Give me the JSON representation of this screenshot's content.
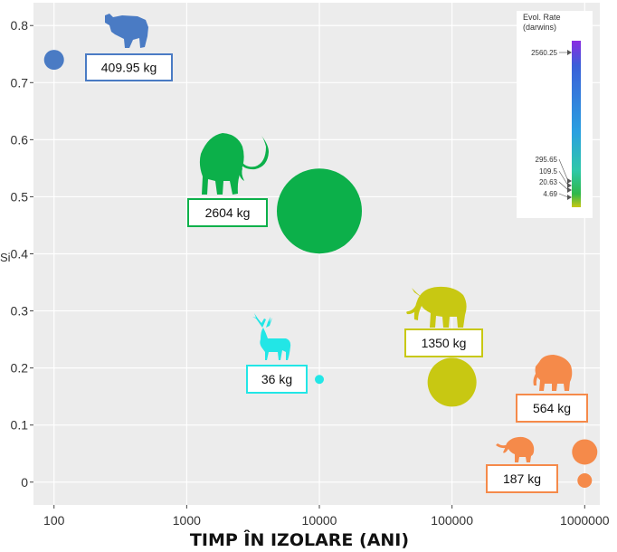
{
  "chart_data": {
    "type": "scatter",
    "title": "",
    "xlabel": "TIMP ÎN IZOLARE (ANI)",
    "ylabel": "Si",
    "x_scale": "log",
    "xlim": [
      70,
      1300000
    ],
    "ylim": [
      -0.04,
      0.84
    ],
    "x_ticks": [
      100,
      1000,
      10000,
      100000,
      1000000
    ],
    "x_tick_labels": [
      "100",
      "1000",
      "10000",
      "100000",
      "1000000"
    ],
    "y_ticks": [
      0,
      0.1,
      0.2,
      0.3,
      0.4,
      0.5,
      0.6,
      0.7,
      0.8
    ],
    "y_tick_labels": [
      "0",
      "0.1",
      "0.2",
      "0.3",
      "0.4",
      "0.5",
      "0.6",
      "0.7",
      "0.8"
    ],
    "grid": true,
    "points": [
      {
        "animal": "bison",
        "x": 100,
        "y": 0.74,
        "mass_label": "409.95 kg",
        "color": "#4a7bc4",
        "icon": "bison-icon"
      },
      {
        "animal": "mammoth",
        "x": 10000,
        "y": 0.475,
        "mass_label": "2604 kg",
        "color": "#0cb04a",
        "icon": "woolly-mammoth-icon"
      },
      {
        "animal": "deer",
        "x": 10000,
        "y": 0.18,
        "mass_label": "36 kg",
        "color": "#22e6e6",
        "icon": "deer-icon"
      },
      {
        "animal": "elephant",
        "x": 100000,
        "y": 0.175,
        "mass_label": "1350 kg",
        "color": "#c8c812",
        "icon": "elephant-icon"
      },
      {
        "animal": "small-mammoth",
        "x": 1000000,
        "y": 0.075,
        "mass_label": "564 kg",
        "color": "#f58a4a",
        "icon": "small-mammoth-icon"
      },
      {
        "animal": "pygmy-elephant",
        "x": 1000000,
        "y": 0.025,
        "mass_label": "187 kg",
        "color": "#f58a4a",
        "icon": "pygmy-elephant-icon"
      }
    ],
    "legend": {
      "title": "Evol. Rate\n(darwins)",
      "position": "top-right",
      "tick_labels": [
        "2560.25",
        "295.65",
        "109.5",
        "20.63",
        "4.69"
      ],
      "colors": [
        "#8a2be2",
        "#3a5fd8",
        "#2aa0e0",
        "#2ec8a8",
        "#2fb84a",
        "#c8c812"
      ]
    }
  }
}
